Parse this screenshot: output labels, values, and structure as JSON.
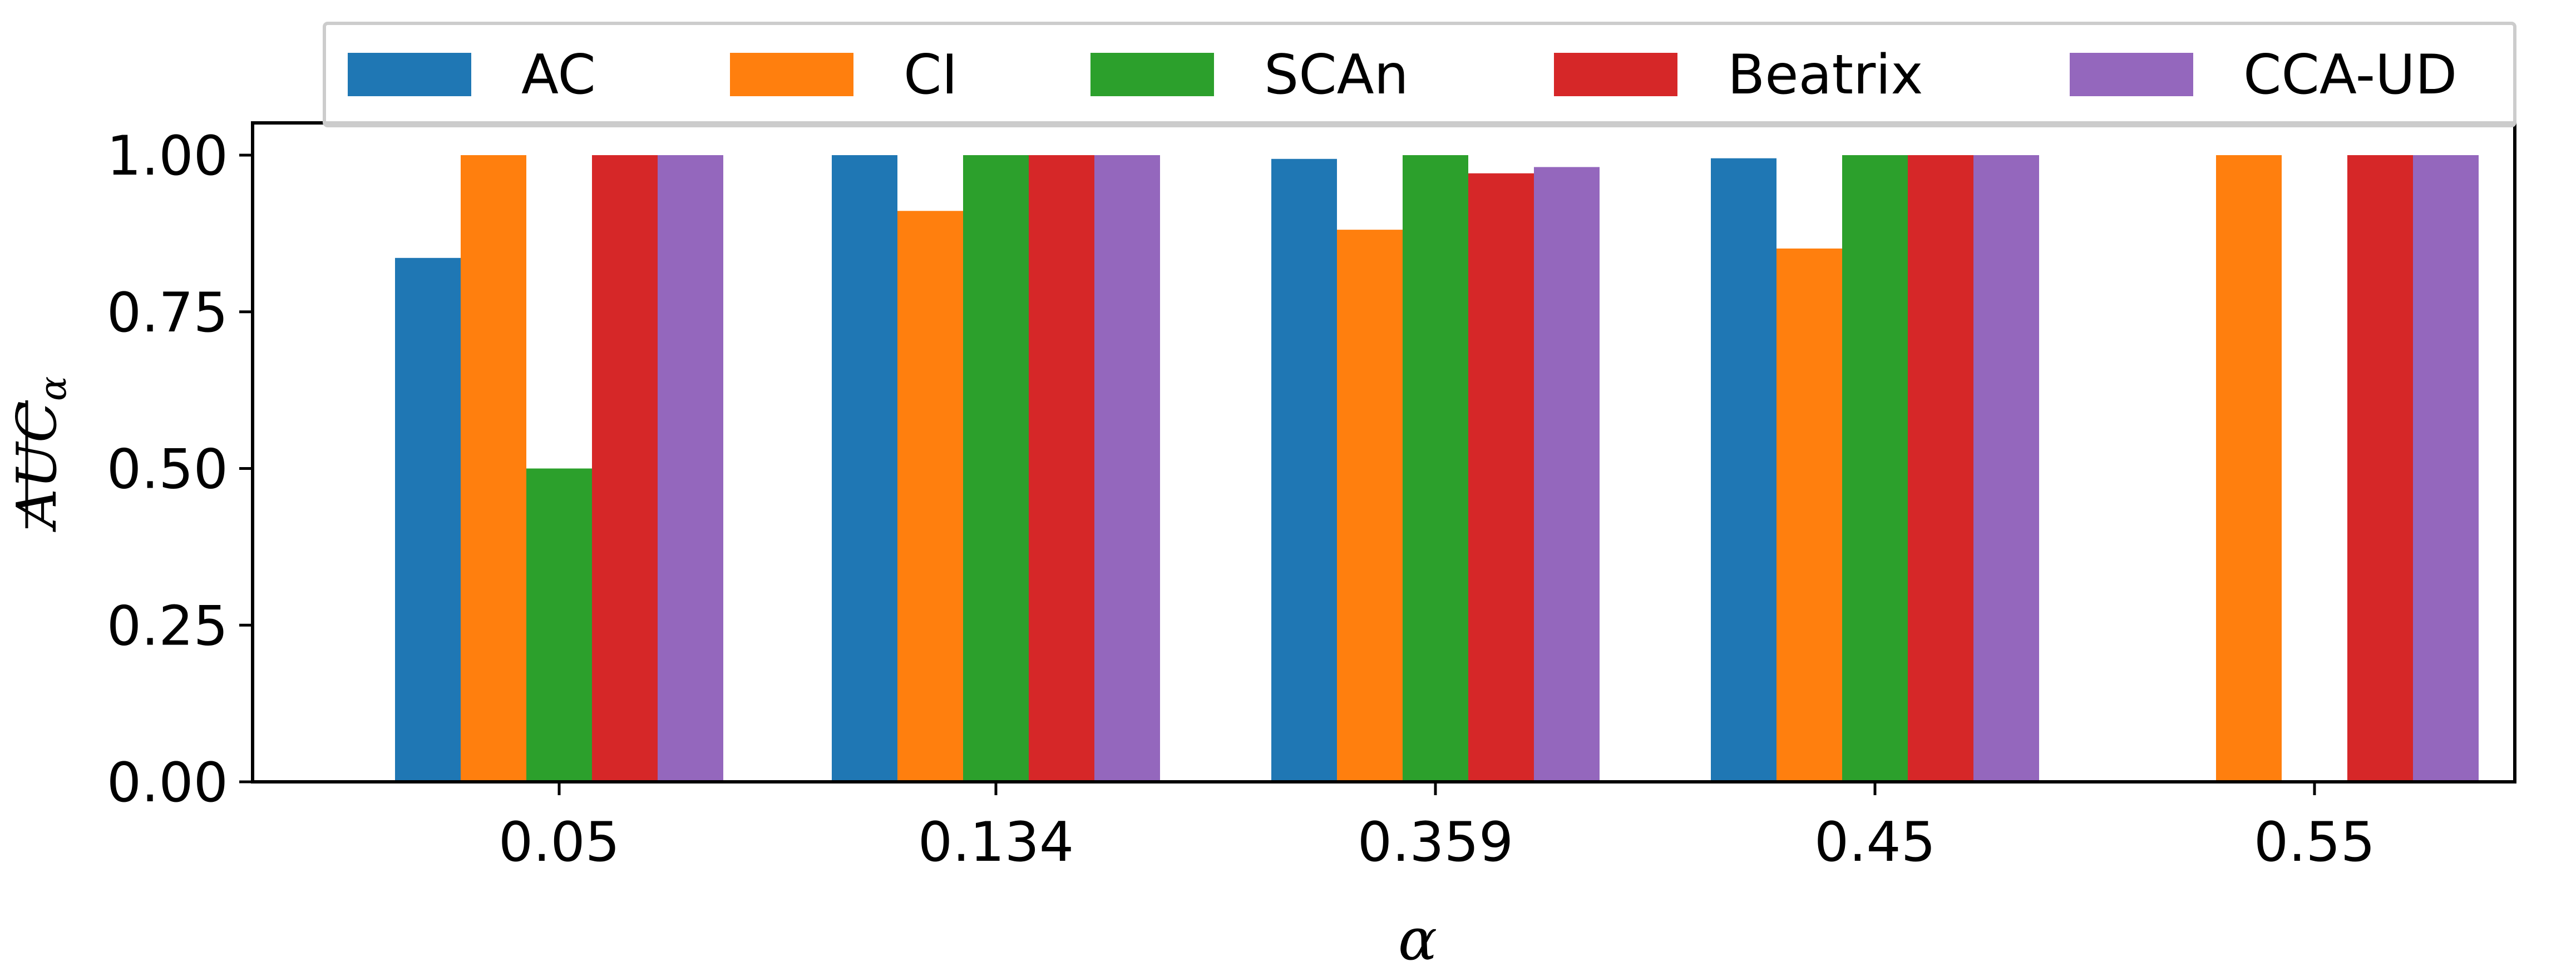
{
  "chart_data": {
    "type": "bar",
    "title": "",
    "xlabel": "α",
    "ylabel": "AUC",
    "ylabel_subscript": "α",
    "categories": [
      "0.05",
      "0.134",
      "0.359",
      "0.45",
      "0.55"
    ],
    "ylim": [
      0,
      1.05
    ],
    "yticks": [
      0.0,
      0.25,
      0.5,
      0.75,
      1.0
    ],
    "ytick_labels": [
      "0.00",
      "0.25",
      "0.50",
      "0.75",
      "1.00"
    ],
    "legend_position": "top, above plot",
    "series": [
      {
        "name": "AC",
        "color": "#1f77b4",
        "values": [
          0.836,
          1.0,
          0.994,
          0.995,
          0
        ]
      },
      {
        "name": "CI",
        "color": "#ff7f0e",
        "values": [
          1.0,
          0.911,
          0.881,
          0.851,
          1.0
        ]
      },
      {
        "name": "SCAn",
        "color": "#2ca02c",
        "values": [
          0.5,
          1.0,
          1.0,
          1.0,
          0
        ]
      },
      {
        "name": "Beatrix",
        "color": "#d62728",
        "values": [
          1.0,
          1.0,
          0.971,
          1.0,
          1.0
        ]
      },
      {
        "name": "CCA-UD",
        "color": "#9467bd",
        "values": [
          1.0,
          1.0,
          0.981,
          1.0,
          1.0
        ]
      }
    ]
  }
}
